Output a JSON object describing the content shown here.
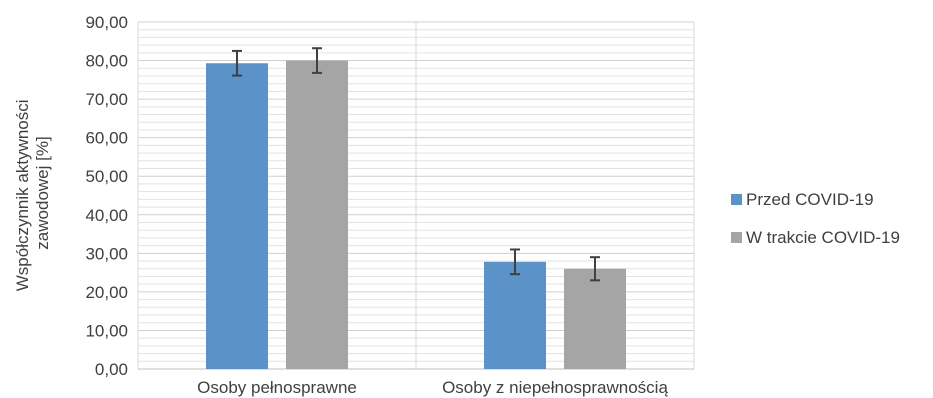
{
  "chart_data": {
    "type": "bar",
    "title": "",
    "xlabel": "",
    "ylabel_lines": [
      "Współczynnik aktywności",
      "zawodowej [%]"
    ],
    "ylim": [
      0,
      90
    ],
    "y_ticks": [
      "0,00",
      "10,00",
      "20,00",
      "30,00",
      "40,00",
      "50,00",
      "60,00",
      "70,00",
      "80,00",
      "90,00"
    ],
    "categories": [
      "Osoby pełnosprawne",
      "Osoby z niepełnosprawnością"
    ],
    "series": [
      {
        "name": "Przed COVID-19",
        "color": "#5b92c8",
        "values": [
          79.3,
          27.8
        ],
        "error": [
          3.2,
          3.2
        ]
      },
      {
        "name": "W trakcie COVID-19",
        "color": "#a5a5a5",
        "values": [
          80.0,
          26.0
        ],
        "error": [
          3.2,
          3.0
        ]
      }
    ],
    "grid": true,
    "error_bars": true,
    "legend_position": "right"
  }
}
